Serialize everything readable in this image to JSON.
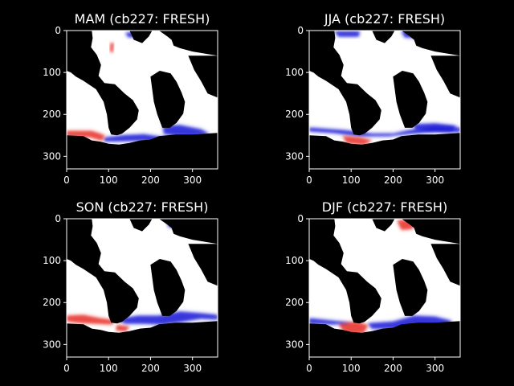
{
  "chart_data": [
    {
      "type": "heatmap",
      "title": "MAM (cb227: FRESH)",
      "xlim": [
        0,
        360
      ],
      "ylim": [
        330,
        0
      ],
      "xticks": [
        "0",
        "100",
        "200",
        "300"
      ],
      "yticks": [
        "0",
        "100",
        "200",
        "300"
      ],
      "colormap": "bwr"
    },
    {
      "type": "heatmap",
      "title": "JJA (cb227: FRESH)",
      "xlim": [
        0,
        360
      ],
      "ylim": [
        330,
        0
      ],
      "xticks": [
        "0",
        "100",
        "200",
        "300"
      ],
      "yticks": [
        "0",
        "100",
        "200",
        "300"
      ],
      "colormap": "bwr"
    },
    {
      "type": "heatmap",
      "title": "SON (cb227: FRESH)",
      "xlim": [
        0,
        360
      ],
      "ylim": [
        330,
        0
      ],
      "xticks": [
        "0",
        "100",
        "200",
        "300"
      ],
      "yticks": [
        "0",
        "100",
        "200",
        "300"
      ],
      "colormap": "bwr"
    },
    {
      "type": "heatmap",
      "title": "DJF (cb227: FRESH)",
      "xlim": [
        0,
        360
      ],
      "ylim": [
        330,
        0
      ],
      "xticks": [
        "0",
        "100",
        "200",
        "300"
      ],
      "yticks": [
        "0",
        "100",
        "200",
        "300"
      ],
      "colormap": "bwr"
    }
  ],
  "colors": {
    "background": "#000000",
    "ocean": "#ffffff",
    "land": "#000000",
    "positive": "#e8302a",
    "negative": "#1a1ad8"
  }
}
